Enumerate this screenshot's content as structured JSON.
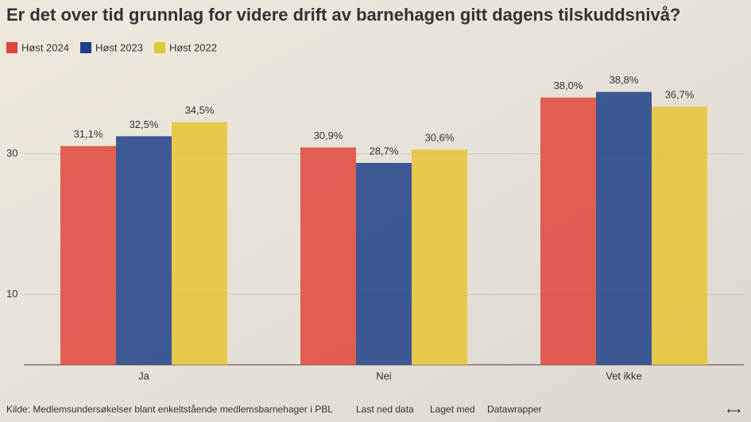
{
  "chart_data": {
    "type": "bar",
    "title": "Er det over tid grunnlag for videre drift av barnehagen gitt dagens tilskuddsnivå?",
    "categories": [
      "Ja",
      "Nei",
      "Vet ikke"
    ],
    "series": [
      {
        "name": "Høst 2024",
        "color": "#e0473a",
        "values": [
          31.1,
          30.9,
          38.0
        ],
        "value_labels": [
          "31,1%",
          "30,9%",
          "38,0%"
        ]
      },
      {
        "name": "Høst 2023",
        "color": "#1f3f87",
        "values": [
          32.5,
          28.7,
          38.8
        ],
        "value_labels": [
          "32,5%",
          "28,7%",
          "38,8%"
        ]
      },
      {
        "name": "Høst 2022",
        "color": "#e6c435",
        "values": [
          34.5,
          30.6,
          36.7
        ],
        "value_labels": [
          "34,5%",
          "30,6%",
          "36,7%"
        ]
      }
    ],
    "ylim": [
      0,
      40
    ],
    "yticks": [
      10,
      30
    ],
    "grid": true,
    "footer": {
      "source": "Kilde: Medlemsundersøkelser blant enkeltstående medlemsbarnehager i PBL",
      "download": "Last ned data",
      "made_with": "Laget med",
      "tool": "Datawrapper"
    }
  }
}
